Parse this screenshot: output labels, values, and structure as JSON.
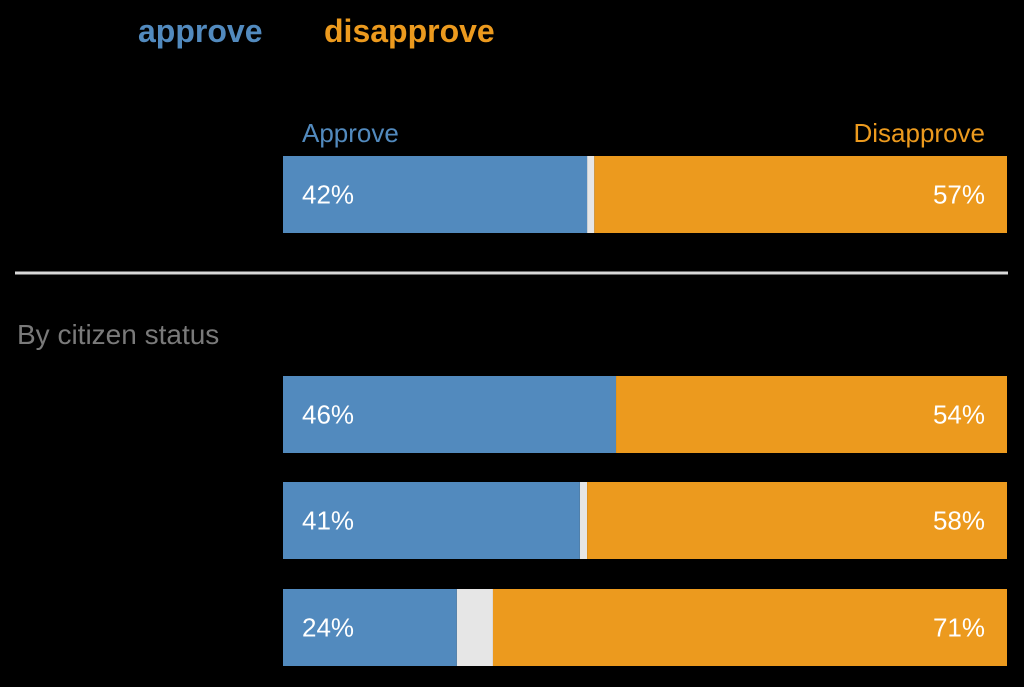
{
  "chart_data": {
    "type": "bar",
    "stacked": true,
    "orientation": "horizontal",
    "legend": {
      "position": "top-left",
      "items": [
        {
          "label": "approve",
          "color": "#528ABE"
        },
        {
          "label": "disapprove",
          "color": "#EC9A1E"
        }
      ]
    },
    "column_headers": {
      "left": "Approve",
      "right": "Disapprove"
    },
    "colors": {
      "approve": "#528ABE",
      "disapprove": "#EC9A1E",
      "other": "#E6E6E6",
      "divider": "#D9D9D9",
      "section_label": "#7A7A7A"
    },
    "xlim": [
      0,
      100
    ],
    "grid": false,
    "overall": {
      "approve": 42,
      "disapprove": 57,
      "approve_label": "42%",
      "disapprove_label": "57%"
    },
    "section": {
      "label": "By citizen status",
      "rows": [
        {
          "approve": 46,
          "disapprove": 54,
          "approve_label": "46%",
          "disapprove_label": "54%"
        },
        {
          "approve": 41,
          "disapprove": 58,
          "approve_label": "41%",
          "disapprove_label": "58%"
        },
        {
          "approve": 24,
          "disapprove": 71,
          "approve_label": "24%",
          "disapprove_label": "71%"
        }
      ]
    }
  }
}
